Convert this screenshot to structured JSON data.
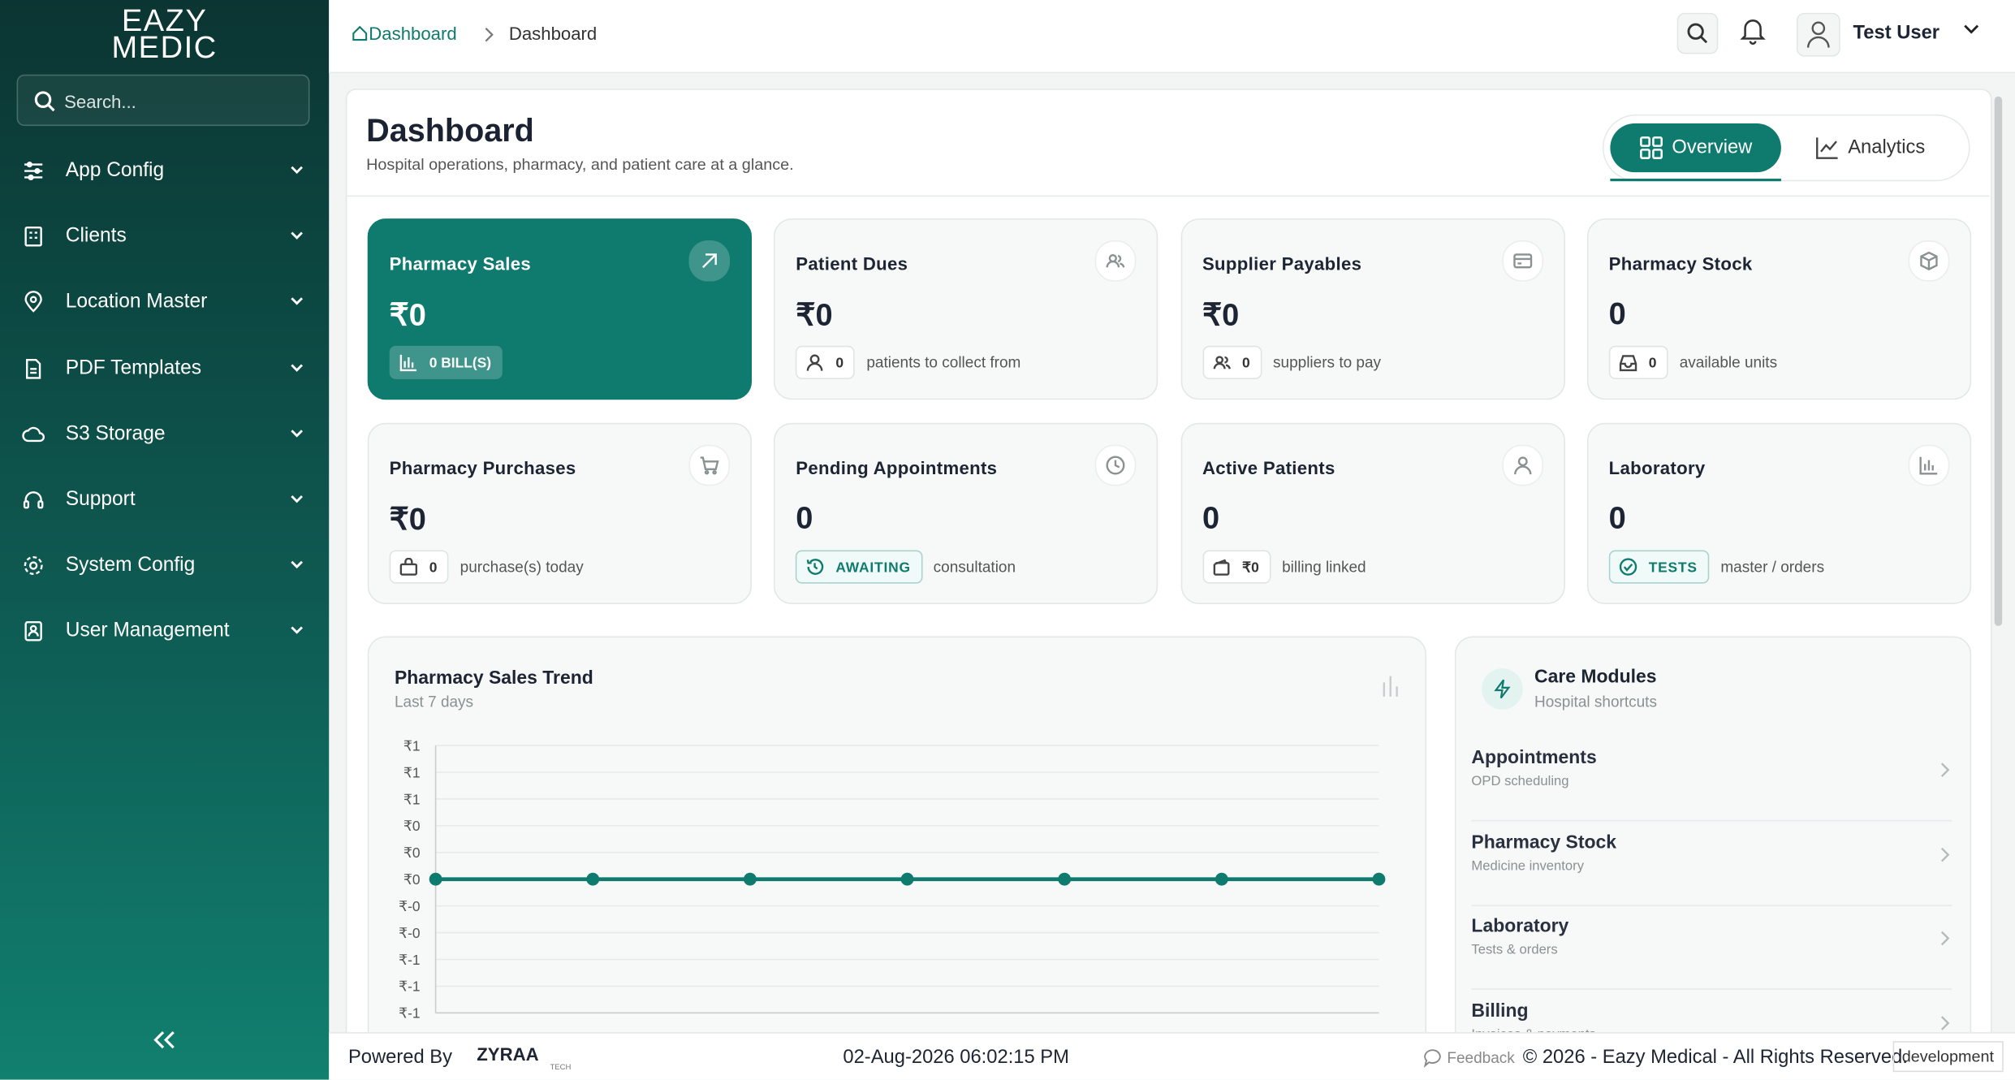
{
  "sidebar": {
    "logo": [
      "EAZY",
      "MEDIC"
    ],
    "search_placeholder": "Search...",
    "menu": [
      "App Config",
      "Clients",
      "Location Master",
      "PDF Templates",
      "S3 Storage",
      "Support",
      "System Config",
      "User Management"
    ]
  },
  "header": {
    "breadcrumb": [
      "Dashboard",
      "Dashboard"
    ],
    "user": "Test User"
  },
  "page": {
    "title": "Dashboard",
    "subtitle": "Hospital operations, pharmacy, and patient care at a glance.",
    "tabs": [
      "Overview",
      "Analytics"
    ]
  },
  "cards": [
    {
      "title": "Pharmacy Sales",
      "value": "₹0",
      "badge": "0 BILL(S)",
      "note": null
    },
    {
      "title": "Patient Dues",
      "value": "₹0",
      "badge": "0",
      "note": "patients to collect from"
    },
    {
      "title": "Supplier Payables",
      "value": "₹0",
      "badge": "0",
      "note": "suppliers to pay"
    },
    {
      "title": "Pharmacy Stock",
      "value": "0",
      "badge": "0",
      "note": "available units"
    },
    {
      "title": "Pharmacy Purchases",
      "value": "₹0",
      "badge": "0",
      "note": "purchase(s) today"
    },
    {
      "title": "Pending Appointments",
      "value": "0",
      "badge": "AWAITING",
      "note": "consultation"
    },
    {
      "title": "Active Patients",
      "value": "0",
      "badge": "₹0",
      "note": "billing linked"
    },
    {
      "title": "Laboratory",
      "value": "0",
      "badge": "TESTS",
      "note": "master / orders"
    }
  ],
  "chart_data": {
    "type": "line",
    "title": "Pharmacy Sales Trend",
    "subtitle": "Last 7 days",
    "categories": [
      null,
      null,
      null,
      null,
      null,
      null,
      null
    ],
    "values": [
      0,
      0,
      0,
      0,
      0,
      0,
      0
    ],
    "color": "#0f7a6e",
    "ylim": [
      -1,
      1
    ],
    "yticks": [
      {
        "value": 1,
        "label": "₹1"
      },
      {
        "value": 0.8,
        "label": "₹1"
      },
      {
        "value": 0.6,
        "label": "₹1"
      },
      {
        "value": 0.4,
        "label": "₹0"
      },
      {
        "value": 0.2,
        "label": "₹0"
      },
      {
        "value": 0,
        "label": "₹0"
      },
      {
        "value": -0.2,
        "label": "₹-0"
      },
      {
        "value": -0.4,
        "label": "₹-0"
      },
      {
        "value": -0.6,
        "label": "₹-1"
      },
      {
        "value": -0.8,
        "label": "₹-1"
      },
      {
        "value": -1,
        "label": "₹-1"
      }
    ],
    "grid": true
  },
  "modules": {
    "title": "Care Modules",
    "subtitle": "Hospital shortcuts",
    "items": [
      {
        "name": "Appointments",
        "desc": "OPD scheduling"
      },
      {
        "name": "Pharmacy Stock",
        "desc": "Medicine inventory"
      },
      {
        "name": "Laboratory",
        "desc": "Tests & orders"
      },
      {
        "name": "Billing",
        "desc": "Invoices & payments"
      }
    ]
  },
  "footer": {
    "powered_by": "Powered By",
    "brand": "ZYRAA",
    "brand_sub": "TECH",
    "datetime": "02-Aug-2026 06:02:15 PM",
    "feedback": "Feedback",
    "copyright": "© 2026 - Eazy Medical - All Rights Reserved.",
    "env": "development"
  }
}
